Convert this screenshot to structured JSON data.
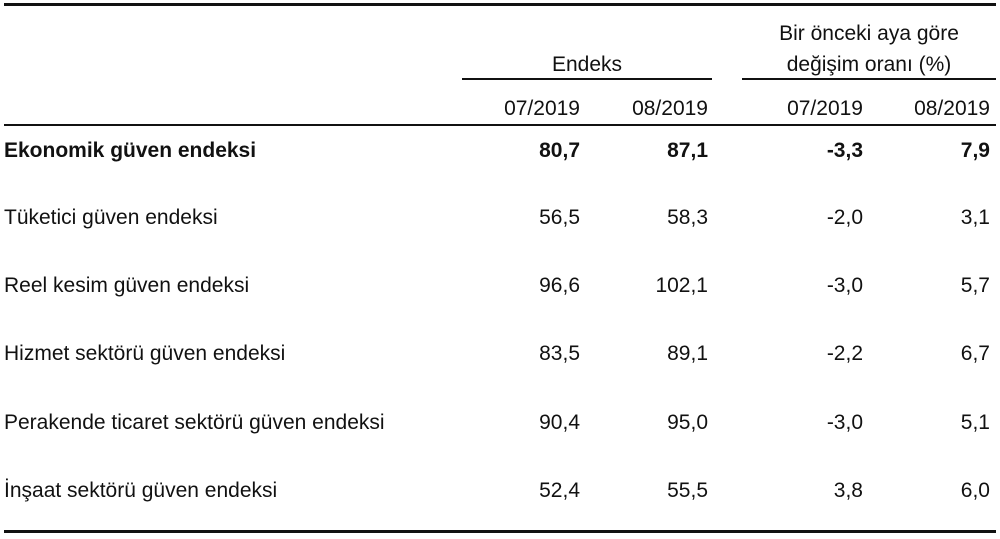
{
  "table": {
    "group_headers": {
      "index": "Endeks",
      "change_line1": "Bir önceki aya göre",
      "change_line2": "değişim oranı (%)"
    },
    "columns": [
      "07/2019",
      "08/2019",
      "07/2019",
      "08/2019"
    ],
    "rows": [
      {
        "label": "Ekonomik güven endeksi",
        "values": [
          "80,7",
          "87,1",
          "-3,3",
          "7,9"
        ]
      },
      {
        "label": "Tüketici güven endeksi",
        "values": [
          "56,5",
          "58,3",
          "-2,0",
          "3,1"
        ]
      },
      {
        "label": "Reel kesim güven endeksi",
        "values": [
          "96,6",
          "102,1",
          "-3,0",
          "5,7"
        ]
      },
      {
        "label": "Hizmet sektörü güven endeksi",
        "values": [
          "83,5",
          "89,1",
          "-2,2",
          "6,7"
        ]
      },
      {
        "label": "Perakende ticaret sektörü güven endeksi",
        "values": [
          "90,4",
          "95,0",
          "-3,0",
          "5,1"
        ]
      },
      {
        "label": "İnşaat sektörü güven endeksi",
        "values": [
          "52,4",
          "55,5",
          "3,8",
          "6,0"
        ]
      }
    ]
  }
}
